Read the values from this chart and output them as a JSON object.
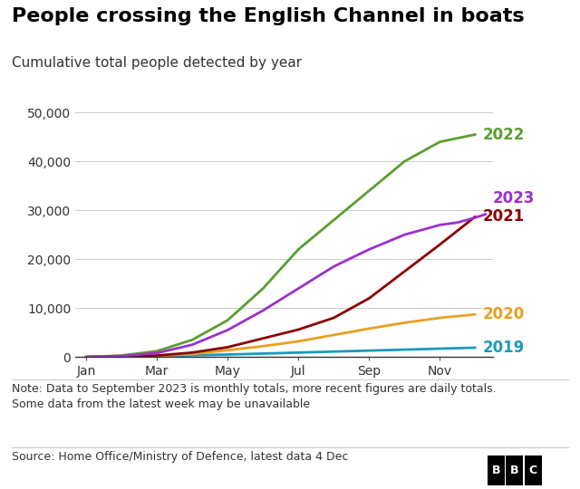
{
  "title": "People crossing the English Channel in boats",
  "subtitle": "Cumulative total people detected by year",
  "note": "Note: Data to September 2023 is monthly totals, more recent figures are daily totals.\nSome data from the latest week may be unavailable",
  "source": "Source: Home Office/Ministry of Defence, latest data 4 Dec",
  "x_tick_labels": [
    "Jan",
    "Mar",
    "May",
    "Jul",
    "Sep",
    "Nov"
  ],
  "x_tick_positions": [
    0,
    2,
    4,
    6,
    8,
    10
  ],
  "ylim": [
    0,
    52000
  ],
  "y_ticks": [
    0,
    10000,
    20000,
    30000,
    40000,
    50000
  ],
  "y_tick_labels": [
    "0",
    "10,000",
    "20,000",
    "30,000",
    "40,000",
    "50,000"
  ],
  "series": {
    "2019": {
      "color": "#1a9ac0",
      "x": [
        0,
        1,
        2,
        3,
        4,
        5,
        6,
        7,
        8,
        9,
        10,
        11
      ],
      "y": [
        0,
        50,
        150,
        350,
        500,
        700,
        900,
        1100,
        1300,
        1500,
        1700,
        1900
      ]
    },
    "2020": {
      "color": "#e8a020",
      "x": [
        0,
        1,
        2,
        3,
        4,
        5,
        6,
        7,
        8,
        9,
        10,
        11
      ],
      "y": [
        0,
        50,
        200,
        600,
        1400,
        2200,
        3200,
        4500,
        5800,
        7000,
        8000,
        8700
      ]
    },
    "2021": {
      "color": "#8b0000",
      "x": [
        0,
        1,
        2,
        3,
        4,
        5,
        6,
        7,
        8,
        9,
        10,
        11
      ],
      "y": [
        0,
        50,
        300,
        900,
        2000,
        3800,
        5600,
        8000,
        12000,
        17500,
        23000,
        28700
      ]
    },
    "2022": {
      "color": "#5a9e2f",
      "x": [
        0,
        1,
        2,
        3,
        4,
        5,
        6,
        7,
        8,
        9,
        10,
        11
      ],
      "y": [
        0,
        300,
        1200,
        3500,
        7500,
        14000,
        22000,
        28000,
        34000,
        40000,
        44000,
        45500
      ]
    },
    "2023": {
      "color": "#9b30d0",
      "x": [
        0,
        1,
        2,
        3,
        4,
        5,
        6,
        7,
        8,
        9,
        9.5,
        10,
        10.5,
        11,
        11.3
      ],
      "y": [
        0,
        200,
        800,
        2500,
        5500,
        9500,
        14000,
        18500,
        22000,
        25000,
        26000,
        27000,
        27500,
        28500,
        29200
      ]
    }
  },
  "end_labels": {
    "2019": {
      "y": 1900
    },
    "2020": {
      "y": 8700
    },
    "2021": {
      "y": 28700
    },
    "2022": {
      "y": 45500
    },
    "2023": {
      "y": 32500
    }
  },
  "bg_color": "#ffffff",
  "grid_color": "#cccccc",
  "title_fontsize": 16,
  "subtitle_fontsize": 11,
  "tick_fontsize": 10,
  "label_fontsize": 12,
  "note_fontsize": 9,
  "source_fontsize": 9
}
